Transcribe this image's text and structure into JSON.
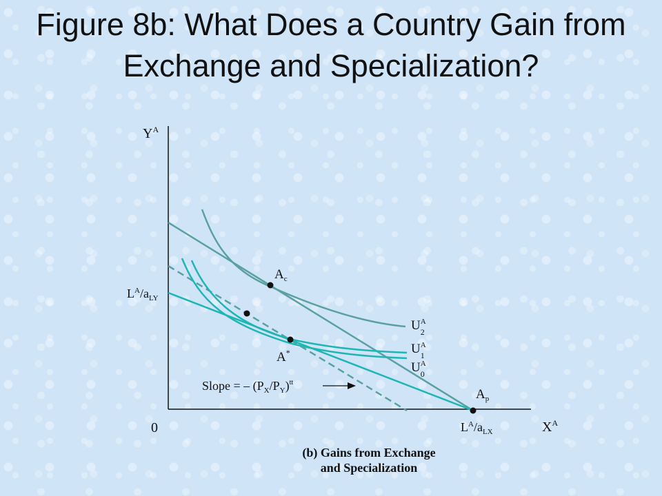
{
  "slide": {
    "title": "Figure 8b: What Does a Country Gain from Exchange and Specialization?"
  },
  "diagram": {
    "y_axis_label": {
      "main": "Y",
      "sup": "A"
    },
    "x_axis_label": {
      "main": "X",
      "sup": "A"
    },
    "origin_label": "0",
    "y_intercept_label": {
      "main": "L",
      "sup": "A",
      "mid": "/a",
      "sub": "LY"
    },
    "x_intercept_label": {
      "main": "L",
      "sup": "A",
      "mid": "/a",
      "sub": "LX"
    },
    "points": [
      {
        "name": "A",
        "sub": "c"
      },
      {
        "name": "A",
        "sup": "*"
      },
      {
        "name": "A",
        "sub": "p"
      }
    ],
    "curves": [
      {
        "name": "U",
        "sup": "A",
        "sub": "2"
      },
      {
        "name": "U",
        "sup": "A",
        "sub": "1"
      },
      {
        "name": "U",
        "sup": "A",
        "sub": "0"
      }
    ],
    "slope_label": {
      "prefix": "Slope = – (P",
      "x_sub": "X",
      "mid": "/P",
      "y_sub": "Y",
      "close": ")",
      "sup": "tt"
    },
    "caption_line1": "(b) Gains from Exchange",
    "caption_line2": "and Specialization"
  },
  "colors": {
    "axis": "#111111",
    "indifference": "#1fb5b5",
    "price_line": "#5aa0a0",
    "autarky_line": "#2aa7a7"
  }
}
